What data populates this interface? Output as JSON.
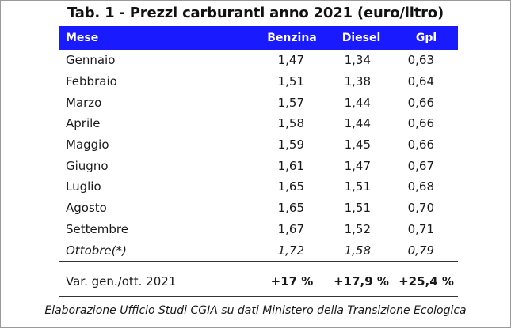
{
  "title": "Tab. 1 - Prezzi carburanti anno 2021 (euro/litro)",
  "headers": {
    "month": "Mese",
    "benzina": "Benzina",
    "diesel": "Diesel",
    "gpl": "Gpl"
  },
  "rows": [
    {
      "month": "Gennaio",
      "benzina": "1,47",
      "diesel": "1,34",
      "gpl": "0,63"
    },
    {
      "month": "Febbraio",
      "benzina": "1,51",
      "diesel": "1,38",
      "gpl": "0,64"
    },
    {
      "month": "Marzo",
      "benzina": "1,57",
      "diesel": "1,44",
      "gpl": "0,66"
    },
    {
      "month": "Aprile",
      "benzina": "1,58",
      "diesel": "1,44",
      "gpl": "0,66"
    },
    {
      "month": "Maggio",
      "benzina": "1,59",
      "diesel": "1,45",
      "gpl": "0,66"
    },
    {
      "month": "Giugno",
      "benzina": "1,61",
      "diesel": "1,47",
      "gpl": "0,67"
    },
    {
      "month": "Luglio",
      "benzina": "1,65",
      "diesel": "1,51",
      "gpl": "0,68"
    },
    {
      "month": "Agosto",
      "benzina": "1,65",
      "diesel": "1,51",
      "gpl": "0,70"
    },
    {
      "month": "Settembre",
      "benzina": "1,67",
      "diesel": "1,52",
      "gpl": "0,71"
    },
    {
      "month": "Ottobre(*)",
      "benzina": "1,72",
      "diesel": "1,58",
      "gpl": "0,79"
    }
  ],
  "variation": {
    "label": "Var. gen./ott. 2021",
    "benzina": "+17 %",
    "diesel": "+17,9 %",
    "gpl": "+25,4 %"
  },
  "source": "Elaborazione  Ufficio Studi CGIA su dati Ministero della Transizione Ecologica",
  "colors": {
    "header_bg": "#1a1aff",
    "header_text": "#ffffff"
  }
}
